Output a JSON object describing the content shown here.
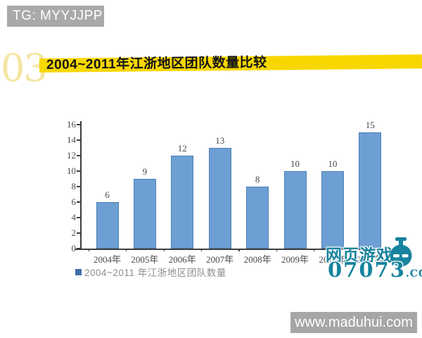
{
  "page": {
    "tag_label": "TG: MYYJJPP",
    "section_number": "03",
    "section_title": "2004~2011年江浙地区团队数量比较",
    "footer_url": "www.maduhui.com",
    "colors": {
      "banner_yellow": "#f8d700",
      "number_yellow": "#f4e6a2",
      "tag_gray": "#a9a9a9",
      "footer_gray": "#a6a6a6",
      "watermark_teal": "#17839e"
    },
    "watermark": {
      "brand_text": "网页游戏·",
      "site_number": "07073",
      "site_tld": ".COM"
    }
  },
  "chart_data": {
    "type": "bar",
    "title": "2004~2011年江浙地区团队数量比较",
    "categories": [
      "2004年",
      "2005年",
      "2006年",
      "2007年",
      "2008年",
      "2009年",
      "2010年",
      "2011年"
    ],
    "values": [
      6,
      9,
      12,
      13,
      8,
      10,
      10,
      15
    ],
    "legend": [
      "2004~2011 年江浙地区团队数量"
    ],
    "legend_position": "bottom-left",
    "xlabel": "",
    "ylabel": "",
    "ylim": [
      0,
      16
    ],
    "ytick_step": 2,
    "grid": false,
    "bar_color": "#6d9fd4",
    "bar_border_color": "#4e81b5",
    "legend_marker_color": "#3e6fa8"
  }
}
